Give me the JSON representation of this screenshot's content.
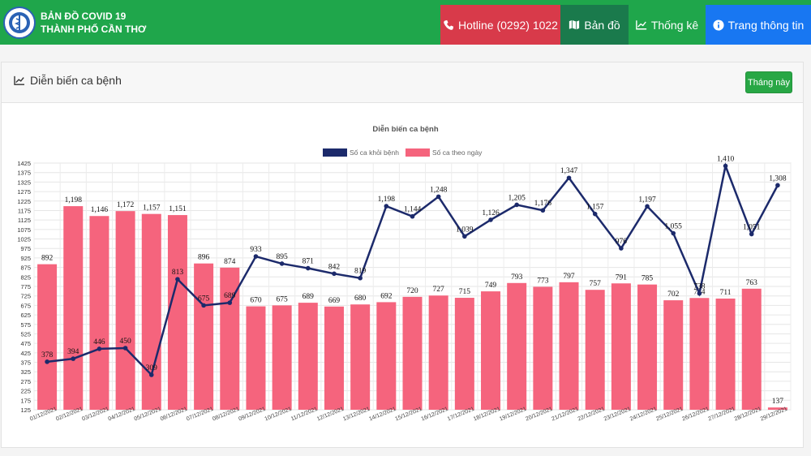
{
  "header": {
    "title_line1": "BẢN ĐỒ COVID 19",
    "title_line2": "THÀNH PHỐ CẦN THƠ",
    "nav": [
      {
        "label": "Hotline (0292) 1022",
        "color": "#d83a4a",
        "icon": "phone-icon"
      },
      {
        "label": "Bản đồ",
        "color": "#1a7a4c",
        "icon": "map-icon"
      },
      {
        "label": "Thống kê",
        "color": "#1fa64b",
        "icon": "chart-line-icon"
      },
      {
        "label": "Trang thông tin",
        "color": "#1877f2",
        "icon": "info-circle-icon"
      }
    ]
  },
  "card": {
    "title": "Diễn biến ca bệnh",
    "month_button": "Tháng này"
  },
  "chart_data": {
    "type": "bar",
    "title": "Diễn biến ca bệnh",
    "legend_position": "top",
    "grid": true,
    "ylim": [
      125,
      1425
    ],
    "yticks": [
      125,
      175,
      225,
      275,
      325,
      375,
      425,
      475,
      525,
      575,
      625,
      675,
      725,
      775,
      825,
      875,
      925,
      975,
      1025,
      1075,
      1125,
      1175,
      1225,
      1275,
      1325,
      1375,
      1425
    ],
    "categories": [
      "01/12/2021",
      "02/12/2021",
      "03/12/2021",
      "04/12/2021",
      "05/12/2021",
      "06/12/2021",
      "07/12/2021",
      "08/12/2021",
      "09/12/2021",
      "10/12/2021",
      "11/12/2021",
      "12/12/2021",
      "13/12/2021",
      "14/12/2021",
      "15/12/2021",
      "16/12/2021",
      "17/12/2021",
      "18/12/2021",
      "19/12/2021",
      "20/12/2021",
      "21/12/2021",
      "22/12/2021",
      "23/12/2021",
      "24/12/2021",
      "25/12/2021",
      "26/12/2021",
      "27/12/2021",
      "28/12/2021",
      "29/12/2021"
    ],
    "series": [
      {
        "name": "Số ca khỏi bệnh",
        "type": "line",
        "color": "#1c2a6b",
        "values": [
          378,
          394,
          446,
          450,
          309,
          813,
          675,
          689,
          933,
          895,
          871,
          842,
          819,
          1198,
          1144,
          1248,
          1039,
          1126,
          1205,
          1176,
          1347,
          1157,
          976,
          1197,
          1055,
          738,
          1410,
          1051,
          1308
        ],
        "labels": [
          "378",
          "394",
          "446",
          "450",
          "309",
          "813",
          "675",
          "689",
          "933",
          "895",
          "871",
          "842",
          "819",
          "1,198",
          "1,144",
          "1,248",
          "1,039",
          "1,126",
          "1,205",
          "1,176",
          "1,347",
          "1,157",
          "976",
          "1,197",
          "1,055",
          "738",
          "1,410",
          "1,051",
          "1,308"
        ]
      },
      {
        "name": "Số ca theo ngày",
        "type": "bar",
        "color": "#f5647d",
        "values": [
          892,
          1198,
          1146,
          1172,
          1157,
          1151,
          896,
          874,
          670,
          675,
          689,
          669,
          680,
          692,
          720,
          727,
          715,
          749,
          793,
          773,
          797,
          757,
          791,
          785,
          702,
          714,
          711,
          763,
          137
        ],
        "labels": [
          "892",
          "1,198",
          "1,146",
          "1,172",
          "1,157",
          "1,151",
          "896",
          "874",
          "670",
          "675",
          "689",
          "669",
          "680",
          "692",
          "720",
          "727",
          "715",
          "749",
          "793",
          "773",
          "797",
          "757",
          "791",
          "785",
          "702",
          "714",
          "711",
          "763",
          "137"
        ]
      }
    ]
  }
}
